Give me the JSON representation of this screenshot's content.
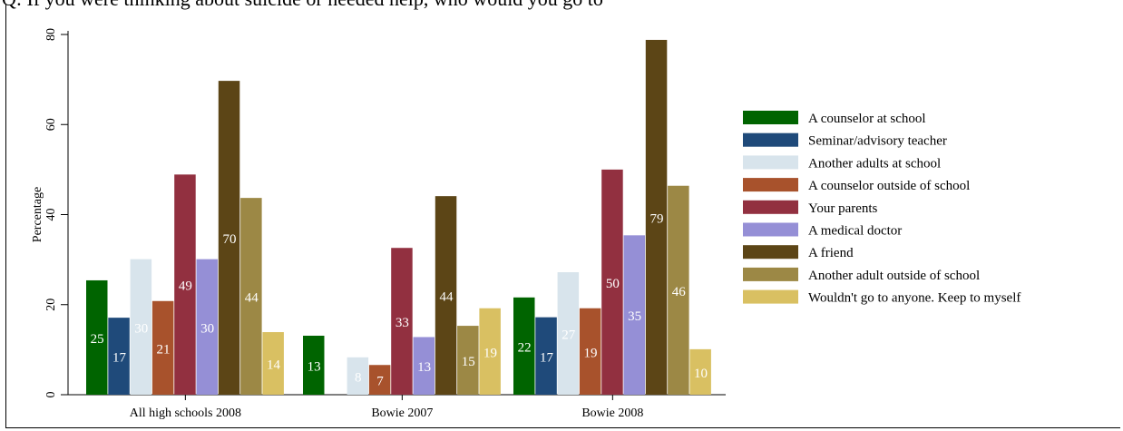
{
  "page_title": "Q:  If you were thinking about suicide or needed help, who would you go to",
  "chart_data": {
    "type": "bar",
    "ylabel": "Percentage",
    "xlabel": "",
    "ylim": [
      0,
      80
    ],
    "y_ticks": [
      0,
      20,
      40,
      60,
      80
    ],
    "categories": [
      "All high schools 2008",
      "Bowie 2007",
      "Bowie 2008"
    ],
    "legend_position": "right",
    "series": [
      {
        "name": "A counselor at school",
        "color": "#006400",
        "values": [
          25.4,
          13.1,
          21.6
        ],
        "labels": [
          "25",
          "13",
          "22"
        ]
      },
      {
        "name": "Seminar/advisory teacher",
        "color": "#1f4a7a",
        "values": [
          17.1,
          null,
          17.2
        ],
        "labels": [
          "17",
          "",
          "17"
        ]
      },
      {
        "name": "Another adults at school",
        "color": "#d8e4ec",
        "values": [
          30.1,
          8.3,
          27.2
        ],
        "labels": [
          "30",
          "8",
          "27"
        ]
      },
      {
        "name": "A counselor outside of school",
        "color": "#a8522c",
        "values": [
          20.8,
          6.6,
          19.2
        ],
        "labels": [
          "21",
          "7",
          "19"
        ]
      },
      {
        "name": "Your parents",
        "color": "#923040",
        "values": [
          48.9,
          32.6,
          50.0
        ],
        "labels": [
          "49",
          "33",
          "50"
        ]
      },
      {
        "name": "A medical doctor",
        "color": "#958fd6",
        "values": [
          30.1,
          12.8,
          35.4
        ],
        "labels": [
          "30",
          "13",
          "35"
        ]
      },
      {
        "name": "A friend",
        "color": "#5c4516",
        "values": [
          69.7,
          44.1,
          78.8
        ],
        "labels": [
          "70",
          "44",
          "79"
        ]
      },
      {
        "name": "Another adult outside of school",
        "color": "#9c8845",
        "values": [
          43.7,
          15.3,
          46.4
        ],
        "labels": [
          "44",
          "15",
          "46"
        ]
      },
      {
        "name": "Wouldn't go to anyone. Keep to myself",
        "color": "#d9c062",
        "values": [
          13.9,
          19.2,
          10.1
        ],
        "labels": [
          "14",
          "19",
          "10"
        ]
      }
    ]
  }
}
